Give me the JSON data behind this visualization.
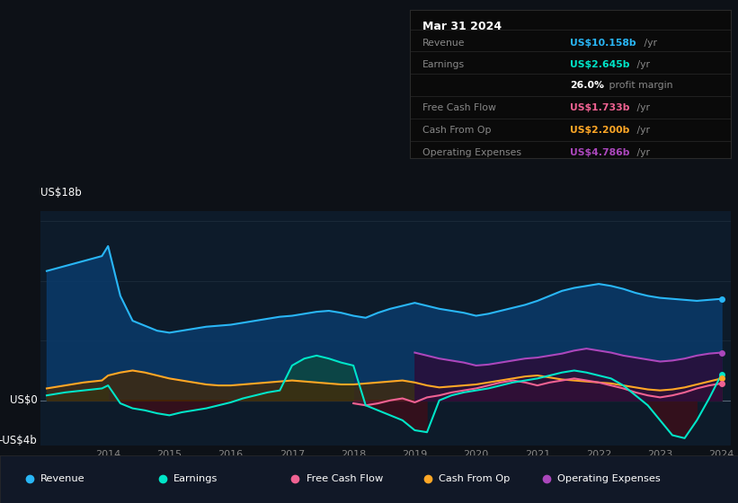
{
  "bg_color": "#0d1117",
  "plot_bg_color": "#0d1b2a",
  "ylabel_top": "US$18b",
  "ylabel_zero": "US$0",
  "ylabel_bottom": "-US$4b",
  "legend": [
    {
      "label": "Revenue",
      "color": "#29b6f6"
    },
    {
      "label": "Earnings",
      "color": "#00e5c8"
    },
    {
      "label": "Free Cash Flow",
      "color": "#f06292"
    },
    {
      "label": "Cash From Op",
      "color": "#ffa726"
    },
    {
      "label": "Operating Expenses",
      "color": "#ab47bc"
    }
  ],
  "x_years": [
    2013.0,
    2013.3,
    2013.6,
    2013.9,
    2014.0,
    2014.2,
    2014.4,
    2014.6,
    2014.8,
    2015.0,
    2015.2,
    2015.4,
    2015.6,
    2015.8,
    2016.0,
    2016.2,
    2016.4,
    2016.6,
    2016.8,
    2017.0,
    2017.2,
    2017.4,
    2017.6,
    2017.8,
    2018.0,
    2018.2,
    2018.4,
    2018.6,
    2018.8,
    2019.0,
    2019.2,
    2019.4,
    2019.6,
    2019.8,
    2020.0,
    2020.2,
    2020.4,
    2020.6,
    2020.8,
    2021.0,
    2021.2,
    2021.4,
    2021.6,
    2021.8,
    2022.0,
    2022.2,
    2022.4,
    2022.6,
    2022.8,
    2023.0,
    2023.2,
    2023.4,
    2023.6,
    2023.8,
    2024.0
  ],
  "revenue": [
    13.0,
    13.5,
    14.0,
    14.5,
    15.5,
    10.5,
    8.0,
    7.5,
    7.0,
    6.8,
    7.0,
    7.2,
    7.4,
    7.5,
    7.6,
    7.8,
    8.0,
    8.2,
    8.4,
    8.5,
    8.7,
    8.9,
    9.0,
    8.8,
    8.5,
    8.3,
    8.8,
    9.2,
    9.5,
    9.8,
    9.5,
    9.2,
    9.0,
    8.8,
    8.5,
    8.7,
    9.0,
    9.3,
    9.6,
    10.0,
    10.5,
    11.0,
    11.3,
    11.5,
    11.7,
    11.5,
    11.2,
    10.8,
    10.5,
    10.3,
    10.2,
    10.1,
    10.0,
    10.1,
    10.2
  ],
  "earnings": [
    0.5,
    0.8,
    1.0,
    1.2,
    1.5,
    -0.3,
    -0.8,
    -1.0,
    -1.3,
    -1.5,
    -1.2,
    -1.0,
    -0.8,
    -0.5,
    -0.2,
    0.2,
    0.5,
    0.8,
    1.0,
    3.5,
    4.2,
    4.5,
    4.2,
    3.8,
    3.5,
    -0.5,
    -1.0,
    -1.5,
    -2.0,
    -3.0,
    -3.2,
    0.0,
    0.5,
    0.8,
    1.0,
    1.2,
    1.5,
    1.8,
    2.0,
    2.2,
    2.5,
    2.8,
    3.0,
    2.8,
    2.5,
    2.2,
    1.5,
    0.5,
    -0.5,
    -2.0,
    -3.5,
    -3.8,
    -2.0,
    0.2,
    2.6
  ],
  "free_cash_flow": [
    null,
    null,
    null,
    null,
    null,
    null,
    null,
    null,
    null,
    null,
    null,
    null,
    null,
    null,
    null,
    null,
    null,
    null,
    null,
    null,
    null,
    null,
    null,
    null,
    -0.3,
    -0.5,
    -0.3,
    0.0,
    0.2,
    -0.2,
    0.3,
    0.5,
    0.8,
    1.0,
    1.2,
    1.5,
    1.8,
    2.0,
    1.8,
    1.5,
    1.8,
    2.0,
    2.2,
    2.0,
    1.8,
    1.5,
    1.2,
    0.8,
    0.5,
    0.3,
    0.5,
    0.8,
    1.2,
    1.5,
    1.7
  ],
  "cash_from_op": [
    1.2,
    1.5,
    1.8,
    2.0,
    2.5,
    2.8,
    3.0,
    2.8,
    2.5,
    2.2,
    2.0,
    1.8,
    1.6,
    1.5,
    1.5,
    1.6,
    1.7,
    1.8,
    1.9,
    2.0,
    1.9,
    1.8,
    1.7,
    1.6,
    1.6,
    1.7,
    1.8,
    1.9,
    2.0,
    1.8,
    1.5,
    1.3,
    1.4,
    1.5,
    1.6,
    1.8,
    2.0,
    2.2,
    2.4,
    2.5,
    2.3,
    2.1,
    2.0,
    1.9,
    1.8,
    1.7,
    1.5,
    1.3,
    1.1,
    1.0,
    1.1,
    1.3,
    1.6,
    1.9,
    2.2
  ],
  "operating_expenses": [
    null,
    null,
    null,
    null,
    null,
    null,
    null,
    null,
    null,
    null,
    null,
    null,
    null,
    null,
    null,
    null,
    null,
    null,
    null,
    null,
    null,
    null,
    null,
    null,
    null,
    null,
    null,
    null,
    null,
    4.8,
    4.5,
    4.2,
    4.0,
    3.8,
    3.5,
    3.6,
    3.8,
    4.0,
    4.2,
    4.3,
    4.5,
    4.7,
    5.0,
    5.2,
    5.0,
    4.8,
    4.5,
    4.3,
    4.1,
    3.9,
    4.0,
    4.2,
    4.5,
    4.7,
    4.8
  ],
  "ylim": [
    -4.5,
    19.0
  ],
  "colors": {
    "revenue": "#29b6f6",
    "revenue_fill": "#0a3a6a",
    "earnings_pos_fill": "#0d4a40",
    "earnings_neg_fill": "#3a0f1a",
    "free_cash_flow": "#f06292",
    "free_cash_flow_fill": "#5a1530",
    "cash_from_op": "#ffa726",
    "cash_from_op_fill": "#4a2800",
    "operating_expenses": "#ab47bc",
    "operating_expenses_fill": "#2a0d3a",
    "earnings": "#00e5c8"
  }
}
